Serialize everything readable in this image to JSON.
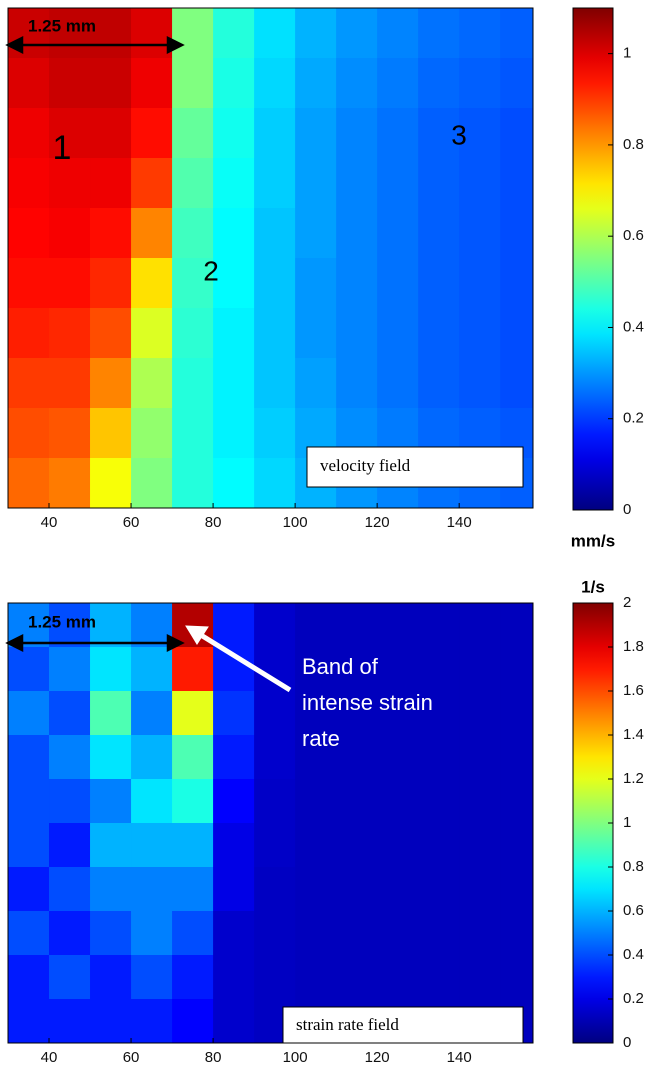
{
  "chart_data": [
    {
      "type": "heatmap",
      "cmap": "jet",
      "xlim": [
        30,
        158
      ],
      "xticks": [
        40,
        60,
        80,
        100,
        120,
        140
      ],
      "x_edges": [
        30,
        40,
        50,
        60,
        70,
        80,
        90,
        100,
        110,
        120,
        130,
        140,
        150,
        158
      ],
      "z": [
        [
          1.02,
          1.03,
          1.03,
          1.0,
          0.55,
          0.45,
          0.38,
          0.33,
          0.3,
          0.28,
          0.26,
          0.25,
          0.24
        ],
        [
          1.0,
          1.02,
          1.02,
          0.98,
          0.55,
          0.44,
          0.37,
          0.32,
          0.29,
          0.27,
          0.25,
          0.24,
          0.23
        ],
        [
          0.98,
          1.0,
          1.0,
          0.95,
          0.52,
          0.43,
          0.36,
          0.31,
          0.28,
          0.26,
          0.24,
          0.23,
          0.22
        ],
        [
          0.97,
          0.98,
          0.98,
          0.9,
          0.5,
          0.42,
          0.36,
          0.31,
          0.28,
          0.26,
          0.24,
          0.23,
          0.22
        ],
        [
          0.96,
          0.97,
          0.95,
          0.82,
          0.48,
          0.41,
          0.35,
          0.31,
          0.28,
          0.26,
          0.24,
          0.23,
          0.22
        ],
        [
          0.95,
          0.95,
          0.92,
          0.72,
          0.47,
          0.41,
          0.35,
          0.3,
          0.28,
          0.26,
          0.24,
          0.23,
          0.22
        ],
        [
          0.93,
          0.92,
          0.88,
          0.65,
          0.46,
          0.4,
          0.35,
          0.3,
          0.28,
          0.26,
          0.24,
          0.23,
          0.22
        ],
        [
          0.9,
          0.9,
          0.82,
          0.6,
          0.45,
          0.4,
          0.35,
          0.31,
          0.28,
          0.26,
          0.24,
          0.23,
          0.22
        ],
        [
          0.88,
          0.87,
          0.75,
          0.57,
          0.45,
          0.4,
          0.36,
          0.32,
          0.29,
          0.27,
          0.25,
          0.24,
          0.23
        ],
        [
          0.85,
          0.83,
          0.68,
          0.55,
          0.45,
          0.41,
          0.37,
          0.33,
          0.3,
          0.28,
          0.26,
          0.25,
          0.24
        ]
      ],
      "clim": [
        0,
        1.1
      ],
      "cticks": [
        0,
        0.2,
        0.4,
        0.6,
        0.8,
        1
      ],
      "colorbar_label": "mm/s",
      "scale_label": "1.25 mm",
      "region_labels": [
        "1",
        "2",
        "3"
      ],
      "field_label": "velocity field"
    },
    {
      "type": "heatmap",
      "cmap": "jet",
      "xlim": [
        30,
        158
      ],
      "xticks": [
        40,
        60,
        80,
        100,
        120,
        140
      ],
      "x_edges": [
        30,
        40,
        50,
        60,
        70,
        80,
        90,
        100,
        110,
        120,
        130,
        140,
        150,
        158
      ],
      "z": [
        [
          0.5,
          0.4,
          0.6,
          0.5,
          1.9,
          0.3,
          0.15,
          0.12,
          0.12,
          0.12,
          0.12,
          0.12,
          0.12
        ],
        [
          0.4,
          0.5,
          0.7,
          0.6,
          1.7,
          0.3,
          0.15,
          0.12,
          0.12,
          0.12,
          0.12,
          0.12,
          0.12
        ],
        [
          0.5,
          0.4,
          0.9,
          0.5,
          1.2,
          0.35,
          0.15,
          0.12,
          0.12,
          0.12,
          0.12,
          0.12,
          0.12
        ],
        [
          0.4,
          0.5,
          0.7,
          0.6,
          0.9,
          0.3,
          0.15,
          0.12,
          0.12,
          0.12,
          0.12,
          0.12,
          0.12
        ],
        [
          0.4,
          0.4,
          0.5,
          0.7,
          0.8,
          0.25,
          0.14,
          0.12,
          0.12,
          0.12,
          0.12,
          0.12,
          0.12
        ],
        [
          0.4,
          0.3,
          0.6,
          0.6,
          0.6,
          0.2,
          0.14,
          0.12,
          0.12,
          0.12,
          0.12,
          0.12,
          0.12
        ],
        [
          0.3,
          0.4,
          0.5,
          0.5,
          0.5,
          0.2,
          0.13,
          0.12,
          0.12,
          0.12,
          0.12,
          0.12,
          0.12
        ],
        [
          0.4,
          0.3,
          0.4,
          0.5,
          0.4,
          0.15,
          0.13,
          0.12,
          0.12,
          0.12,
          0.12,
          0.12,
          0.12
        ],
        [
          0.3,
          0.4,
          0.3,
          0.4,
          0.3,
          0.15,
          0.13,
          0.12,
          0.12,
          0.12,
          0.12,
          0.12,
          0.12
        ],
        [
          0.3,
          0.3,
          0.3,
          0.3,
          0.25,
          0.15,
          0.13,
          0.12,
          0.12,
          0.12,
          0.12,
          0.12,
          0.12
        ]
      ],
      "clim": [
        0,
        2
      ],
      "cticks": [
        0,
        0.2,
        0.4,
        0.6,
        0.8,
        1,
        1.2,
        1.4,
        1.6,
        1.8,
        2
      ],
      "colorbar_label": "1/s",
      "scale_label": "1.25 mm",
      "annotation_lines": [
        "Band of",
        "intense strain",
        "rate"
      ],
      "field_label": "strain rate field"
    }
  ]
}
